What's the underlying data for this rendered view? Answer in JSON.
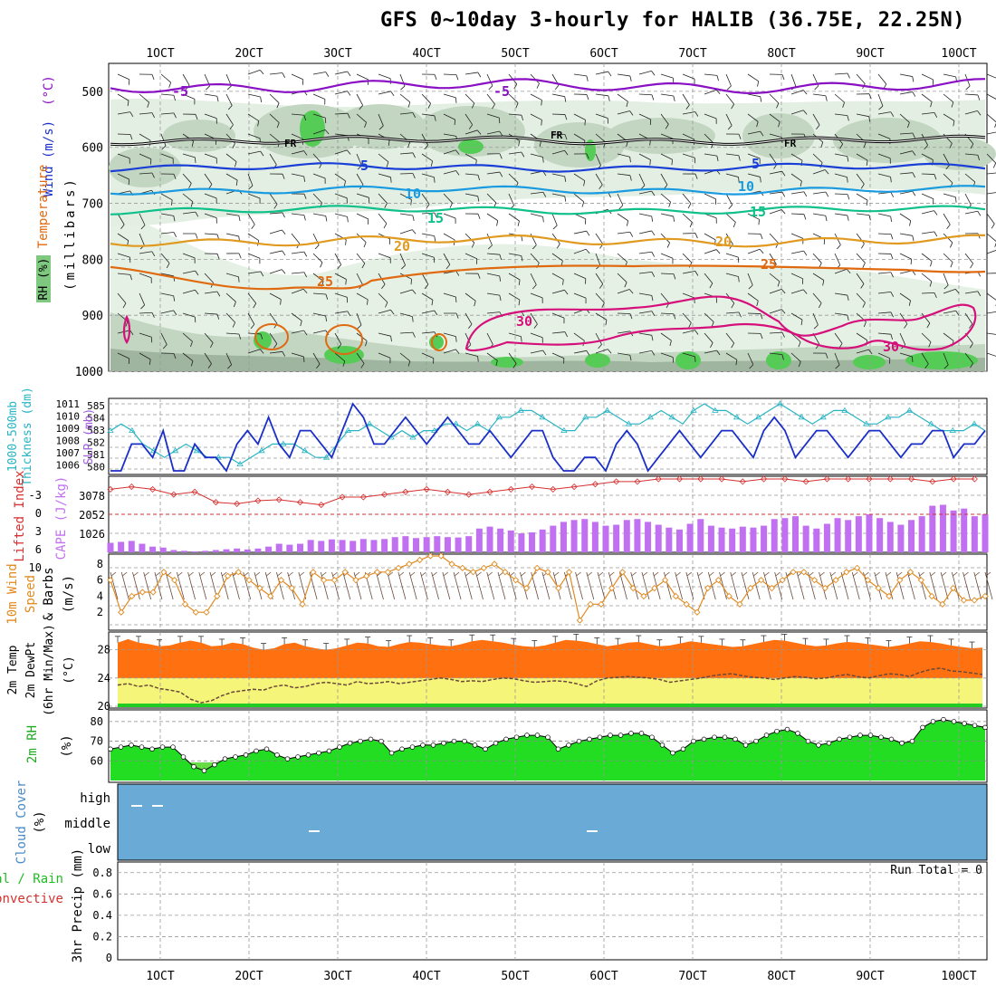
{
  "title": "GFS 0~10day 3-hourly for HALIB (36.75E, 22.25N)",
  "colors": {
    "rh_light": "#e3efe3",
    "rh_mid": "#c2d6c2",
    "rh_dark": "#9fb59f",
    "rh_green": "#55cc55",
    "temp_minus5_hi": "#8a10c4",
    "temp_minus5": "#1a3fd6",
    "temp_10": "#1a9be0",
    "temp_15": "#10c08a",
    "temp_20": "#e09a20",
    "temp_25": "#e06a10",
    "temp_30": "#d6107a",
    "slp": "#1a2fc8",
    "thickness": "#28b4c4",
    "lifted": "#d63030",
    "cape": "#c070f0",
    "wind": "#e08a20",
    "temp_fill": "#ff7010",
    "temp_band": "#ffb040",
    "dew_band": "#f5f57a",
    "rh2m": "#22dd22",
    "cloud": "#6aaad6"
  },
  "x_axis": {
    "ticks": [
      "1OCT",
      "2OCT",
      "3OCT",
      "4OCT",
      "5OCT",
      "6OCT",
      "7OCT",
      "8OCT",
      "9OCT",
      "10OCT"
    ]
  },
  "panels": {
    "upper": {
      "labels": {
        "wind": "Wind (m/s)",
        "temperature": "Temperature",
        "temp_unit": "(°C)",
        "rh": "RH (%)",
        "pressure": "(millibars)"
      },
      "yticks": [
        "500",
        "600",
        "700",
        "800",
        "900",
        "1000"
      ],
      "contour_labels": {
        "m5a": "-5",
        "m5b": "-5",
        "p5a": "5",
        "p5b": "5",
        "p10a": "10",
        "p10b": "10",
        "p15a": "15",
        "p15b": "15",
        "p20a": "20",
        "p20b": "20",
        "p25a": "25",
        "p25b": "25",
        "p30a": "30",
        "p30b": "30",
        "fr1": "FR",
        "fr2": "FR",
        "fr3": "FR"
      }
    },
    "slp": {
      "labels": {
        "thickness": "1000-500mb",
        "thickness2": "Thickness (dm)",
        "slp": "SLP (mb)"
      },
      "left_ticks": [
        "585",
        "584",
        "583",
        "582",
        "581",
        "580"
      ],
      "right_ticks": [
        "1011",
        "1010",
        "1009",
        "1008",
        "1007",
        "1006"
      ]
    },
    "cape": {
      "labels": {
        "lifted": "Lifted Index",
        "cape": "CAPE (J/kg)"
      },
      "left_ticks": [
        "-3",
        "0",
        "3",
        "6",
        "10"
      ],
      "right_ticks": [
        "3078",
        "2052",
        "1026"
      ]
    },
    "wind10m": {
      "labels": {
        "a": "10m Wind",
        "b": "Speed",
        "c": "& Barbs",
        "unit": "(m/s)"
      },
      "ticks": [
        "8",
        "6",
        "4",
        "2"
      ]
    },
    "temp2m": {
      "labels": {
        "a": "2m Temp",
        "b": "2m DewPt",
        "c": "(6hr Min/Max)",
        "unit": "(°C)"
      },
      "ticks": [
        "28",
        "24",
        "20"
      ]
    },
    "rh2m": {
      "labels": {
        "a": "2m RH",
        "unit": "(%)"
      },
      "ticks": [
        "80",
        "70",
        "60"
      ]
    },
    "cloud": {
      "labels": {
        "a": "Cloud Cover",
        "unit": "(%)"
      },
      "levels": [
        "high",
        "middle",
        "low"
      ]
    },
    "precip": {
      "labels": {
        "a": "tal / Rain",
        "b": "Convective",
        "c": "3hr Precip (mm)"
      },
      "ticks": [
        "0.8",
        "0.6",
        "0.4",
        "0.2",
        "0"
      ],
      "run_total": "Run Total = 0"
    }
  },
  "chart_data": [
    {
      "type": "line",
      "name": "SLP (mb)",
      "ylim": [
        1006,
        1011
      ],
      "values": [
        1006,
        1006,
        1008,
        1008,
        1007,
        1009,
        1006,
        1006,
        1008,
        1007,
        1007,
        1006,
        1008,
        1009,
        1008,
        1010,
        1008,
        1007,
        1009,
        1009,
        1008,
        1007,
        1009,
        1011,
        1010,
        1008,
        1008,
        1009,
        1010,
        1009,
        1008,
        1009,
        1010,
        1009,
        1008,
        1008,
        1009,
        1008,
        1007,
        1008,
        1009,
        1009,
        1007,
        1006,
        1006,
        1007,
        1007,
        1006,
        1008,
        1009,
        1008,
        1006,
        1007,
        1008,
        1009,
        1008,
        1007,
        1008,
        1009,
        1009,
        1008,
        1007,
        1009,
        1010,
        1009,
        1007,
        1008,
        1009,
        1009,
        1008,
        1007,
        1008,
        1009,
        1009,
        1008,
        1007,
        1008,
        1008,
        1009,
        1009,
        1007,
        1008,
        1008,
        1009
      ]
    },
    {
      "type": "line",
      "name": "Thickness (dm)",
      "ylim": [
        580,
        585
      ],
      "values": [
        583,
        583.5,
        583,
        582,
        581.5,
        581,
        581.5,
        582,
        581.5,
        581,
        581,
        581,
        580.5,
        581,
        581.5,
        582,
        582,
        582,
        581.5,
        581,
        581,
        582,
        583,
        583,
        583.5,
        583,
        582.5,
        583,
        582.5,
        583,
        583,
        583.5,
        583.5,
        583,
        583.5,
        583,
        584,
        584,
        584.5,
        584.5,
        584,
        583.5,
        583,
        583,
        584,
        584,
        584.5,
        584,
        583.5,
        583.5,
        584,
        584.5,
        584,
        583.5,
        584.5,
        585,
        584.5,
        584.5,
        584,
        583.5,
        584,
        584.5,
        585,
        584.5,
        584,
        583.5,
        584,
        584.5,
        584.5,
        584,
        583.5,
        583.5,
        584,
        584,
        584.5,
        584,
        583.5,
        583,
        583,
        583,
        583.5,
        583
      ]
    },
    {
      "type": "bar",
      "name": "CAPE (J/kg)",
      "ylim": [
        0,
        4000
      ],
      "values": [
        500,
        550,
        600,
        450,
        300,
        250,
        120,
        80,
        50,
        80,
        120,
        160,
        200,
        150,
        200,
        300,
        450,
        400,
        450,
        650,
        600,
        680,
        650,
        600,
        700,
        650,
        700,
        800,
        850,
        750,
        800,
        850,
        800,
        780,
        850,
        1250,
        1350,
        1250,
        1150,
        1000,
        1050,
        1200,
        1400,
        1600,
        1700,
        1750,
        1600,
        1400,
        1450,
        1700,
        1750,
        1600,
        1450,
        1300,
        1200,
        1500,
        1750,
        1400,
        1300,
        1250,
        1350,
        1300,
        1400,
        1750,
        1800,
        1900,
        1400,
        1250,
        1500,
        1800,
        1700,
        1900,
        2000,
        1800,
        1600,
        1450,
        1700,
        1900,
        2450,
        2500,
        2200,
        2300,
        1900,
        2000
      ]
    },
    {
      "type": "line",
      "name": "Lifted Index",
      "ylim": [
        -4,
        10
      ],
      "values": [
        -2,
        -2.5,
        -2,
        -1,
        -1.5,
        0.5,
        0.8,
        0.2,
        0,
        0.5,
        1,
        -0.5,
        -0.5,
        -1,
        -1.5,
        -2,
        -1.5,
        -1,
        -1.5,
        -2,
        -2.5,
        -2,
        -2.5,
        -3,
        -3.5,
        -3.5,
        -4,
        -4,
        -4,
        -4,
        -3.5,
        -4,
        -4,
        -3.5,
        -4,
        -4,
        -4,
        -4,
        -4,
        -3.5,
        -4,
        -4
      ]
    },
    {
      "type": "line",
      "name": "10m Wind Speed (m/s)",
      "ylim": [
        0,
        9
      ],
      "values": [
        6,
        2,
        4,
        4.5,
        4.5,
        7,
        6,
        3,
        2,
        2,
        4,
        6.5,
        7,
        6,
        5,
        4,
        6,
        5,
        3,
        7,
        6,
        6,
        7,
        6,
        6.5,
        7,
        7,
        7.5,
        8,
        8.5,
        9,
        9,
        8,
        7.5,
        7,
        7.5,
        8,
        7,
        6,
        5,
        7.5,
        7,
        5,
        7,
        1,
        3,
        3,
        5,
        7,
        5,
        4,
        5,
        6,
        4,
        3,
        2,
        5,
        6,
        4,
        3,
        5,
        6,
        5,
        6,
        7,
        7,
        6,
        5,
        6,
        7,
        7.5,
        6,
        5,
        4,
        6,
        7,
        6,
        4,
        3,
        5,
        3.5,
        3.5,
        4
      ]
    },
    {
      "type": "area",
      "name": "2m Temp (°C)",
      "ylim": [
        20,
        30
      ],
      "values": [
        29,
        29.5,
        29,
        28.8,
        28.5,
        28.6,
        29,
        29.3,
        29,
        28.5,
        28.6,
        29,
        28.8,
        28.3,
        28,
        28.2,
        28.8,
        29,
        28.5,
        28.2,
        28,
        28.2,
        28.6,
        29,
        28.9,
        28.5,
        28.4,
        28.8,
        29.1,
        29,
        28.8,
        28.6,
        28.5,
        28.8,
        29.2,
        29.4,
        29.2,
        29,
        28.7,
        28.5,
        28.4,
        28.6,
        29,
        29.4,
        29.3,
        29.1,
        28.8,
        28.5,
        28.7,
        29,
        29.1,
        28.8,
        28.5,
        28.6,
        28.9,
        29.2,
        29,
        28.8,
        28.6,
        28.4,
        28.5,
        28.8,
        29.1,
        29.4,
        29.3,
        29,
        28.7,
        28.5,
        28.6,
        28.9,
        29.1,
        29,
        28.8,
        28.6,
        28.4,
        28.6,
        28.9,
        29.2,
        29.1,
        28.9,
        28.6,
        28.4,
        28.2,
        28.3
      ]
    },
    {
      "type": "line",
      "name": "2m DewPt (°C)",
      "ylim": [
        20,
        30
      ],
      "values": [
        23,
        23.2,
        22.8,
        23,
        22.5,
        22.3,
        22,
        21,
        20.5,
        20.8,
        21.5,
        22,
        22.2,
        22.4,
        22.3,
        22.8,
        23,
        22.6,
        22.8,
        23.2,
        23.4,
        23.2,
        23,
        23.5,
        23.2,
        23.3,
        23.5,
        23.2,
        23.4,
        23.6,
        23.8,
        24,
        23.8,
        23.5,
        23.6,
        23.5,
        23.8,
        24,
        23.9,
        23.6,
        23.4,
        23.5,
        23.6,
        23.5,
        23.2,
        22.8,
        23.6,
        24,
        24.1,
        24.2,
        24.1,
        24,
        23.8,
        23.4,
        23.6,
        23.8,
        24,
        24.3,
        24.5,
        24.6,
        24.3,
        24.1,
        24,
        23.8,
        24,
        24.2,
        24.1,
        23.9,
        24,
        24.3,
        24.5,
        24.2,
        24,
        24.3,
        24.6,
        24.5,
        24.2,
        24.8,
        25.2,
        25.4,
        25,
        24.9,
        24.7,
        24.5
      ]
    },
    {
      "type": "area",
      "name": "2m RH (%)",
      "ylim": [
        50,
        85
      ],
      "values": [
        66,
        67,
        68,
        67,
        66,
        67,
        67,
        62,
        57,
        55,
        58,
        61,
        62,
        63,
        65,
        66,
        63,
        61,
        62,
        63,
        64,
        65,
        67,
        69,
        70,
        71,
        70,
        64,
        66,
        67,
        68,
        68,
        69,
        70,
        70,
        68,
        66,
        69,
        71,
        72,
        73,
        73,
        72,
        66,
        68,
        70,
        71,
        72,
        73,
        73,
        74,
        74,
        72,
        68,
        64,
        66,
        70,
        71,
        72,
        72,
        71,
        68,
        70,
        73,
        75,
        76,
        74,
        70,
        68,
        69,
        71,
        72,
        73,
        73,
        72,
        71,
        69,
        70,
        77,
        80,
        81,
        80,
        79,
        78,
        77
      ]
    },
    {
      "type": "table",
      "name": "Cloud Cover",
      "marks": [
        {
          "level": "high",
          "day": "1OCT"
        },
        {
          "level": "high",
          "day": "1OCT"
        },
        {
          "level": "middle",
          "day": "3OCT"
        },
        {
          "level": "middle",
          "day": "6OCT"
        }
      ]
    },
    {
      "type": "bar",
      "name": "3hr Precip (mm)",
      "ylim": [
        0,
        0.9
      ],
      "values": [
        0
      ]
    }
  ]
}
